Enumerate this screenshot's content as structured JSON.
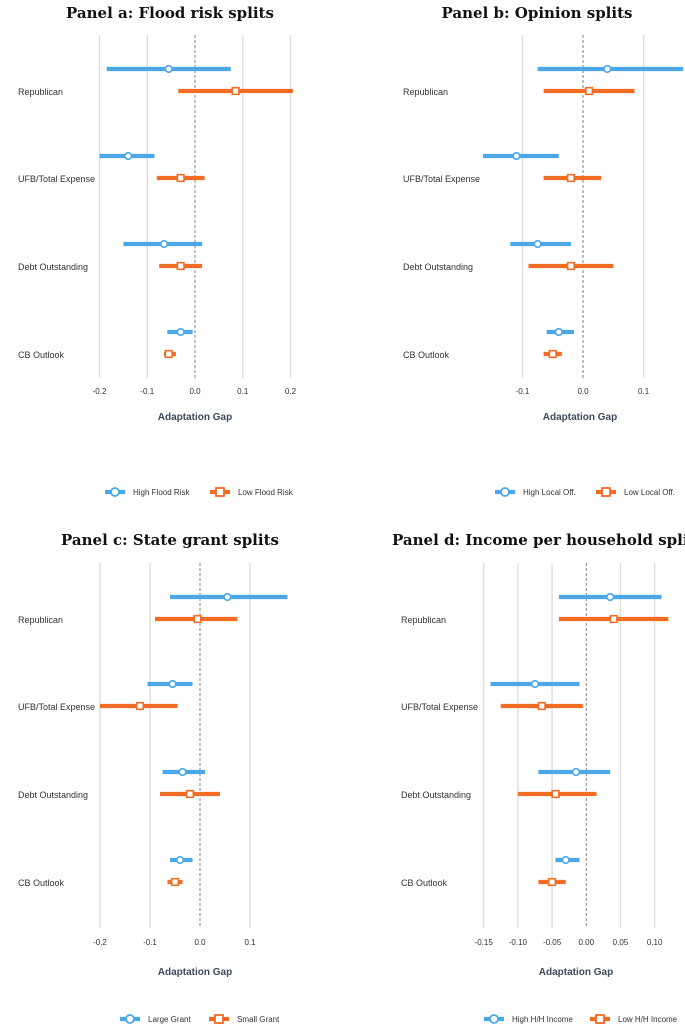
{
  "chart_data": [
    {
      "type": "forest",
      "title": "Panel a: Flood risk splits",
      "xlabel": "Adaptation Gap",
      "xlim": [
        -0.22,
        0.22
      ],
      "ticks": [
        -0.2,
        -0.1,
        0.0,
        0.1,
        0.2
      ],
      "tick_labels": [
        "-0.2",
        "-0.1",
        "0.0",
        "0.1",
        "0.2"
      ],
      "categories": [
        "Republican",
        "UFB/Total Expense",
        "Debt Outstanding",
        "CB Outlook"
      ],
      "series": [
        {
          "name": "High Flood Risk",
          "color": "#4aa8e8",
          "marker": "circle",
          "estimates": [
            -0.055,
            -0.14,
            -0.065,
            -0.03
          ],
          "lower": [
            -0.185,
            -0.2,
            -0.15,
            -0.058
          ],
          "upper": [
            0.075,
            -0.085,
            0.015,
            -0.005
          ]
        },
        {
          "name": "Low Flood Risk",
          "color": "#f26c24",
          "marker": "square",
          "estimates": [
            0.085,
            -0.03,
            -0.03,
            -0.055
          ],
          "lower": [
            -0.035,
            -0.08,
            -0.075,
            -0.065
          ],
          "upper": [
            0.205,
            0.02,
            0.015,
            -0.04
          ]
        }
      ]
    },
    {
      "type": "forest",
      "title": "Panel b: Opinion splits",
      "xlabel": "Adaptation Gap",
      "xlim": [
        -0.18,
        0.17
      ],
      "ticks": [
        -0.1,
        0.0,
        0.1
      ],
      "tick_labels": [
        "-0.1",
        "0.0",
        "0.1"
      ],
      "categories": [
        "Republican",
        "UFB/Total Expense",
        "Debt Outstanding",
        "CB Outlook"
      ],
      "series": [
        {
          "name": "High Local Off.",
          "color": "#4aa8e8",
          "marker": "circle",
          "estimates": [
            0.04,
            -0.11,
            -0.075,
            -0.04
          ],
          "lower": [
            -0.075,
            -0.165,
            -0.12,
            -0.06
          ],
          "upper": [
            0.165,
            -0.04,
            -0.02,
            -0.015
          ]
        },
        {
          "name": "Low Local Off.",
          "color": "#f26c24",
          "marker": "square",
          "estimates": [
            0.01,
            -0.02,
            -0.02,
            -0.05
          ],
          "lower": [
            -0.065,
            -0.065,
            -0.09,
            -0.065
          ],
          "upper": [
            0.085,
            0.03,
            0.05,
            -0.035
          ]
        }
      ]
    },
    {
      "type": "forest",
      "title": "Panel c: State grant splits",
      "xlabel": "Adaptation Gap",
      "xlim": [
        -0.22,
        0.2
      ],
      "ticks": [
        -0.2,
        -0.1,
        0.0,
        0.1
      ],
      "tick_labels": [
        "-0.2",
        "-0.1",
        "0.0",
        "0.1"
      ],
      "categories": [
        "Republican",
        "UFB/Total Expense",
        "Debt Outstanding",
        "CB Outlook"
      ],
      "series": [
        {
          "name": "Large Grant",
          "color": "#4aa8e8",
          "marker": "circle",
          "estimates": [
            0.055,
            -0.055,
            -0.035,
            -0.04
          ],
          "lower": [
            -0.06,
            -0.105,
            -0.075,
            -0.06
          ],
          "upper": [
            0.175,
            -0.015,
            0.01,
            -0.015
          ]
        },
        {
          "name": "Small Grant",
          "color": "#f26c24",
          "marker": "square",
          "estimates": [
            -0.005,
            -0.12,
            -0.02,
            -0.05
          ],
          "lower": [
            -0.09,
            -0.2,
            -0.08,
            -0.065
          ],
          "upper": [
            0.075,
            -0.045,
            0.04,
            -0.035
          ]
        }
      ]
    },
    {
      "type": "forest",
      "title": "Panel d: Income per household splits",
      "xlabel": "Adaptation Gap",
      "xlim": [
        -0.17,
        0.14
      ],
      "ticks": [
        -0.15,
        -0.1,
        -0.05,
        0.0,
        0.05,
        0.1
      ],
      "tick_labels": [
        "-0.15",
        "-0.10",
        "-0.05",
        "0.00",
        "0.05",
        "0.10"
      ],
      "categories": [
        "Republican",
        "UFB/Total Expense",
        "Debt Outstanding",
        "CB Outlook"
      ],
      "series": [
        {
          "name": "High H/H Income",
          "color": "#4aa8e8",
          "marker": "circle",
          "estimates": [
            0.035,
            -0.075,
            -0.015,
            -0.03
          ],
          "lower": [
            -0.04,
            -0.14,
            -0.07,
            -0.045
          ],
          "upper": [
            0.11,
            -0.01,
            0.035,
            -0.01
          ]
        },
        {
          "name": "Low H/H Income",
          "color": "#f26c24",
          "marker": "square",
          "estimates": [
            0.04,
            -0.065,
            -0.045,
            -0.05
          ],
          "lower": [
            -0.04,
            -0.125,
            -0.1,
            -0.07
          ],
          "upper": [
            0.12,
            -0.005,
            0.015,
            -0.03
          ]
        }
      ]
    }
  ]
}
